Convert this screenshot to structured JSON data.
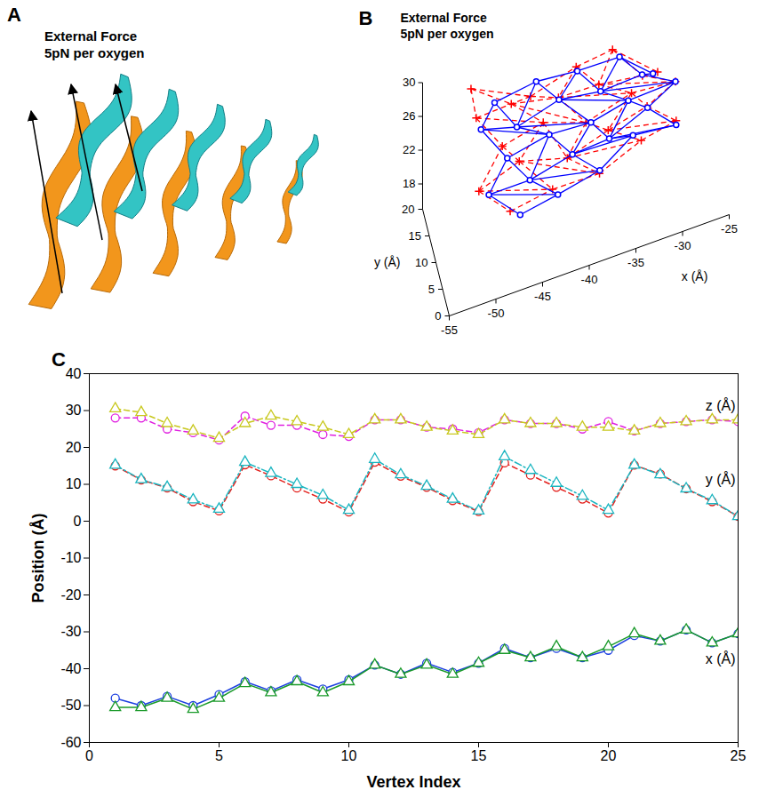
{
  "chart_data": [
    {
      "panel": "A",
      "type": "diagram",
      "annotations": [
        "External Force",
        "5pN per oxygen"
      ]
    },
    {
      "panel": "B",
      "type": "mesh3d",
      "annotations": [
        "External Force",
        "5pN per oxygen"
      ],
      "xlabel": "x (Å)",
      "ylabel": "y (Å)",
      "xlim": [
        -55,
        -25
      ],
      "xticks": [
        -55,
        -50,
        -45,
        -40,
        -35,
        -30,
        -25
      ],
      "ylim": [
        0,
        20
      ],
      "yticks": [
        0,
        5,
        10,
        15,
        20
      ],
      "zlim": [
        15,
        30
      ],
      "zticks": [
        18,
        22,
        26,
        30
      ],
      "series": [
        {
          "color": "#ff0000",
          "marker": "plus",
          "line_style": "dashed",
          "x": [
            -50.5,
            -50.5,
            -48,
            -51,
            -48,
            -44,
            -46.5,
            -43.5,
            -46.5,
            -43.5,
            -39,
            -41.5,
            -39,
            -41.5,
            -38.5,
            -35,
            -37,
            -34,
            -37,
            -34,
            -30.5,
            -32.5,
            -29.5,
            -33,
            -30.5
          ],
          "y": [
            15.2,
            11.3,
            9.2,
            5.8,
            3.3,
            16,
            13,
            10,
            7,
            3,
            16.8,
            12.6,
            9.5,
            6,
            2.8,
            17.5,
            13.8,
            10.3,
            6.8,
            3,
            15.2,
            12.6,
            8.8,
            5.6,
            1.3
          ],
          "z": [
            30.5,
            29.5,
            26.5,
            24.5,
            22.5,
            26.5,
            28.5,
            27,
            25.5,
            23.5,
            27.5,
            27.5,
            25.5,
            24.5,
            23.5,
            27.5,
            26.5,
            26.5,
            25.5,
            25.5,
            24.5,
            26.5,
            27,
            27.5,
            27.5
          ]
        },
        {
          "color": "#0000ff",
          "marker": "circle",
          "line_style": "solid",
          "x": [
            -48,
            -50,
            -47.5,
            -50,
            -47,
            -43.5,
            -46,
            -43,
            -45.5,
            -43,
            -39,
            -41.5,
            -38.5,
            -41,
            -38.5,
            -34.5,
            -37,
            -34.5,
            -37,
            -35,
            -31,
            -32.5,
            -29.5,
            -33,
            -30.5
          ],
          "y": [
            15,
            11.2,
            9,
            5.3,
            2.8,
            15.3,
            12.3,
            9,
            6,
            2.5,
            16,
            12.2,
            9.2,
            5.6,
            2.6,
            15.8,
            12.5,
            9.2,
            6,
            2.2,
            15.2,
            12.8,
            8.8,
            5.3,
            1.3
          ],
          "z": [
            28,
            28,
            25,
            24,
            22,
            28.5,
            26,
            26,
            23.5,
            23,
            27.5,
            27.5,
            25.5,
            25,
            24,
            27.5,
            26.5,
            26.5,
            25,
            27,
            24.5,
            26.5,
            27,
            27.5,
            27
          ]
        }
      ]
    },
    {
      "panel": "C",
      "type": "line",
      "xlabel": "Vertex Index",
      "ylabel": "Position (Å)",
      "x": [
        1,
        2,
        3,
        4,
        5,
        6,
        7,
        8,
        9,
        10,
        11,
        12,
        13,
        14,
        15,
        16,
        17,
        18,
        19,
        20,
        21,
        22,
        23,
        24,
        25
      ],
      "xlim": [
        0,
        25
      ],
      "xticks": [
        0,
        5,
        10,
        15,
        20,
        25
      ],
      "ylim": [
        -60,
        40
      ],
      "yticks": [
        -60,
        -50,
        -40,
        -30,
        -20,
        -10,
        0,
        10,
        20,
        30,
        40
      ],
      "series": [
        {
          "name": "x (Å)",
          "color": "#1c3fe0",
          "marker": "circle",
          "line_style": "solid",
          "values": [
            -48,
            -50,
            -47.5,
            -50,
            -47,
            -43.5,
            -46,
            -43,
            -45.5,
            -43,
            -39,
            -41.5,
            -38.5,
            -41,
            -38.5,
            -34.5,
            -37,
            -34.5,
            -37,
            -35,
            -31,
            -32.5,
            -29.5,
            -33,
            -30.5
          ]
        },
        {
          "name": "x (Å)",
          "color": "#1a9a2a",
          "marker": "triangle",
          "line_style": "solid",
          "values": [
            -50.5,
            -50.5,
            -48,
            -51,
            -48,
            -44,
            -46.5,
            -43.5,
            -46.5,
            -43.5,
            -39,
            -41.5,
            -39,
            -41.5,
            -38.5,
            -35,
            -37,
            -34,
            -37,
            -34,
            -30.5,
            -32.5,
            -29.5,
            -33,
            -30.5
          ]
        },
        {
          "name": "y (Å)",
          "color": "#e3201c",
          "marker": "circle",
          "line_style": "dashed",
          "values": [
            15,
            11.2,
            9,
            5.3,
            2.8,
            15.3,
            12.3,
            9,
            6,
            2.5,
            16,
            12.2,
            9.2,
            5.6,
            2.6,
            15.8,
            12.5,
            9.2,
            6,
            2.2,
            15.2,
            12.8,
            8.8,
            5.3,
            1.3
          ]
        },
        {
          "name": "y (Å)",
          "color": "#1ab5c0",
          "marker": "triangle",
          "line_style": "dashdot",
          "values": [
            15.2,
            11.3,
            9.2,
            5.8,
            3.3,
            16,
            13,
            10,
            7,
            3,
            16.8,
            12.6,
            9.5,
            6,
            2.8,
            17.5,
            13.8,
            10.3,
            6.8,
            3,
            15.2,
            12.6,
            8.8,
            5.6,
            1.3
          ]
        },
        {
          "name": "z (Å)",
          "color": "#e020e0",
          "marker": "circle",
          "line_style": "dashed",
          "values": [
            28,
            28,
            25,
            24,
            22,
            28.5,
            26,
            26,
            23.5,
            23,
            27.5,
            27.5,
            25.5,
            25,
            24,
            27.5,
            26.5,
            26.5,
            25,
            27,
            24.5,
            26.5,
            27,
            27.5,
            27
          ]
        },
        {
          "name": "z (Å)",
          "color": "#c8c81e",
          "marker": "triangle",
          "line_style": "dashed",
          "values": [
            30.5,
            29.5,
            26.5,
            24.5,
            22.5,
            26.5,
            28.5,
            27,
            25.5,
            23.5,
            27.5,
            27.5,
            25.5,
            24.5,
            23.5,
            27.5,
            26.5,
            26.5,
            25.5,
            25.5,
            24.5,
            26.5,
            27,
            27.5,
            27.5
          ]
        }
      ]
    }
  ]
}
